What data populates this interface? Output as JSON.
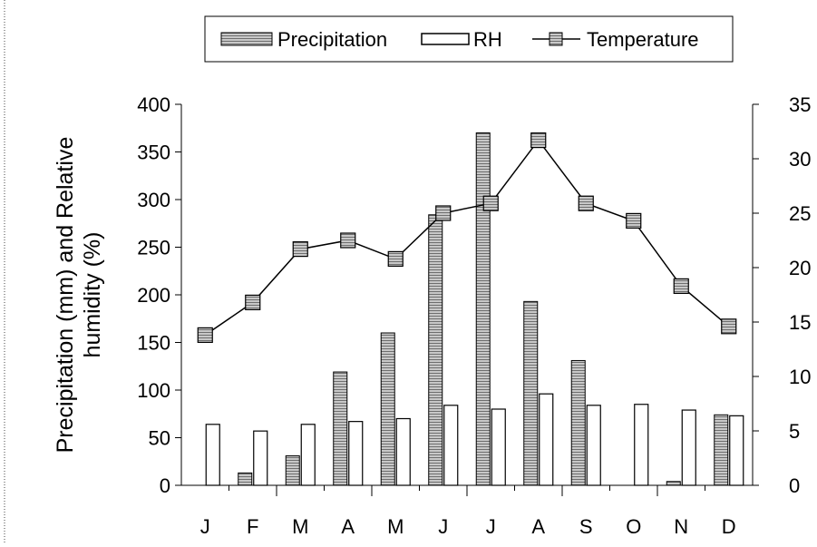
{
  "chart_data": {
    "type": "bar",
    "categories": [
      "J",
      "F",
      "M",
      "A",
      "M",
      "J",
      "J",
      "A",
      "S",
      "O",
      "N",
      "D"
    ],
    "series": [
      {
        "name": "Precipitation",
        "kind": "bar",
        "axis": "left",
        "pattern": "hatched",
        "values": [
          0,
          13,
          31,
          119,
          160,
          284,
          370,
          193,
          131,
          0,
          4,
          74
        ]
      },
      {
        "name": "RH",
        "kind": "bar",
        "axis": "left",
        "pattern": "hollow",
        "values": [
          64,
          57,
          64,
          67,
          70,
          84,
          80,
          96,
          84,
          85,
          79,
          73
        ]
      },
      {
        "name": "Temperature",
        "kind": "line",
        "axis": "right",
        "marker": "square",
        "values": [
          13.8,
          16.8,
          21.7,
          22.5,
          20.8,
          25.0,
          25.9,
          31.7,
          25.9,
          24.3,
          18.3,
          14.6
        ]
      }
    ],
    "ylabel": "Precipitation (mm) and Relative humidity (%)",
    "y_left_ticks": [
      "0",
      "50",
      "100",
      "150",
      "200",
      "250",
      "300",
      "350",
      "400"
    ],
    "y_right_ticks": [
      "0",
      "5",
      "10",
      "15",
      "20",
      "25",
      "30",
      "35"
    ],
    "ylim_left": [
      0,
      400
    ],
    "ylim_right": [
      0,
      35
    ],
    "grid": false,
    "legend": {
      "placement": "top-center",
      "entries": [
        "Precipitation",
        "RH",
        "Temperature"
      ]
    }
  }
}
